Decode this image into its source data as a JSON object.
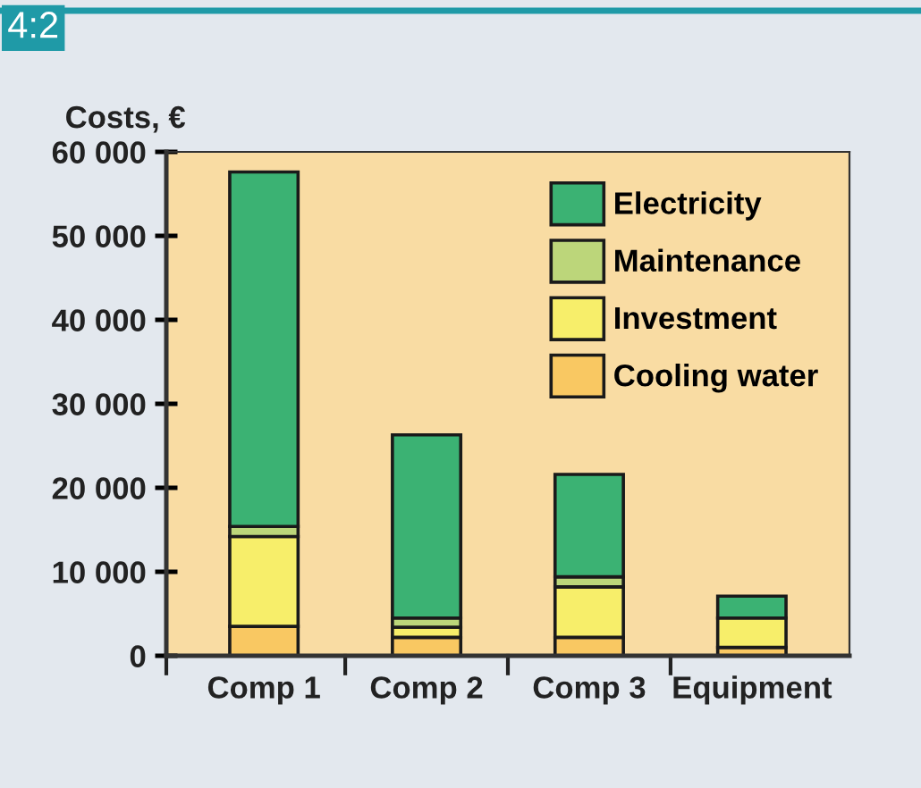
{
  "chart_data": {
    "type": "bar",
    "stacked": true,
    "ylabel": "Costs, €",
    "annotations": [
      "4:2"
    ],
    "categories": [
      "Comp 1",
      "Comp 2",
      "Comp 3",
      "Equipment"
    ],
    "series": [
      {
        "name": "Cooling water",
        "color": "#f9c862",
        "values": [
          3500,
          2200,
          2200,
          1000
        ]
      },
      {
        "name": "Investment",
        "color": "#f7ee6a",
        "values": [
          10700,
          1200,
          6000,
          3500
        ]
      },
      {
        "name": "Maintenance",
        "color": "#bcd67a",
        "values": [
          1200,
          1100,
          1200,
          null
        ]
      },
      {
        "name": "Electricity",
        "color": "#3bb273",
        "values": [
          42200,
          21800,
          12200,
          2600
        ]
      }
    ],
    "ylim": [
      0,
      60000
    ],
    "yticks": [
      {
        "value": 0,
        "label": "0"
      },
      {
        "value": 10000,
        "label": "10 000"
      },
      {
        "value": 20000,
        "label": "20 000"
      },
      {
        "value": 30000,
        "label": "30 000"
      },
      {
        "value": 40000,
        "label": "40 000"
      },
      {
        "value": 50000,
        "label": "50 000"
      },
      {
        "value": 60000,
        "label": "60 000"
      }
    ],
    "grid": false,
    "legend": "top right"
  }
}
